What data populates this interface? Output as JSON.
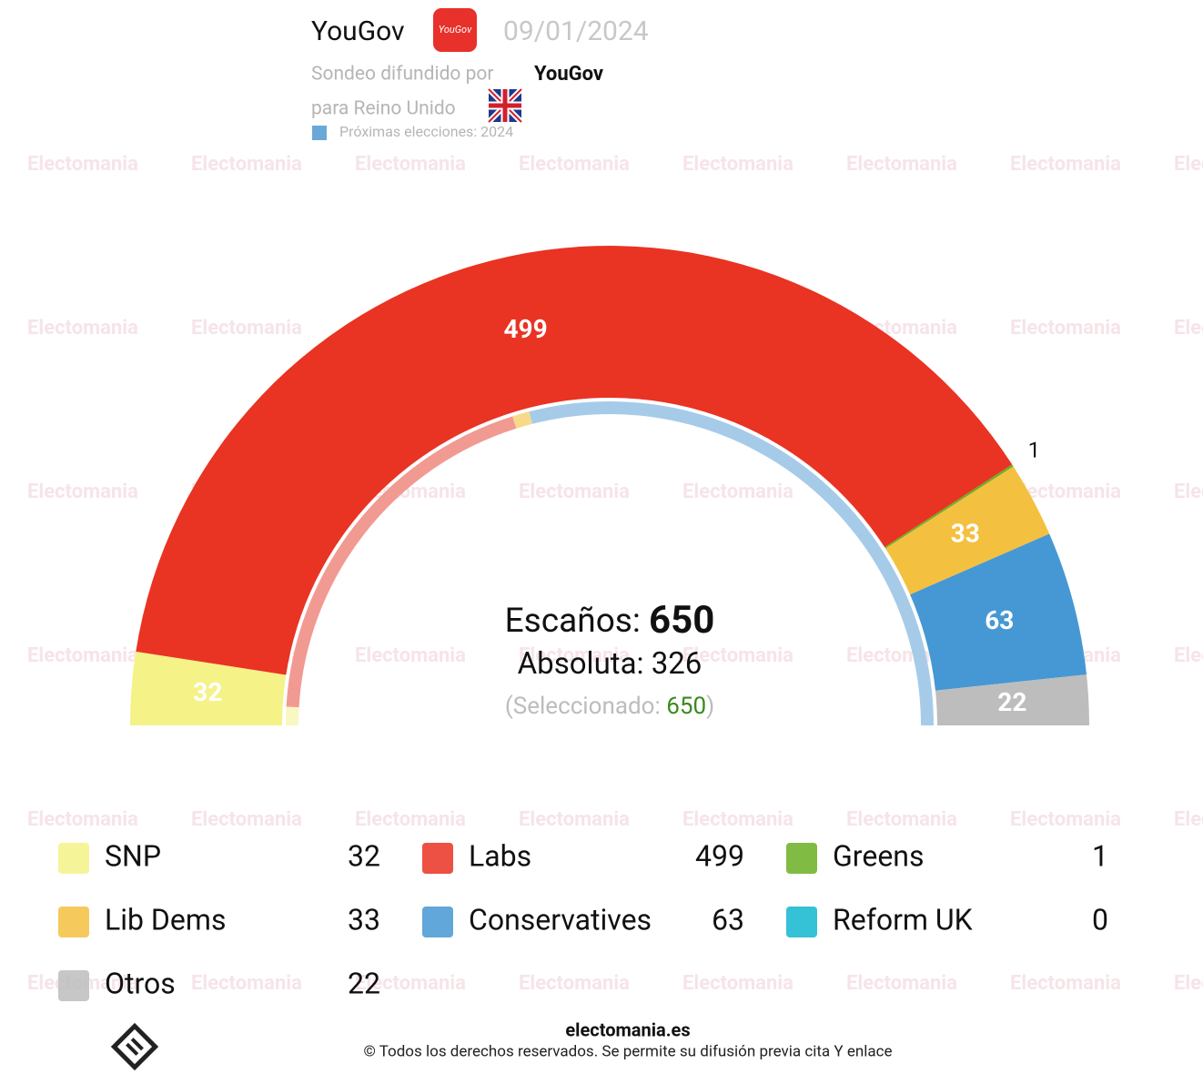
{
  "header": {
    "pollster": "YouGov",
    "logo_text": "YouGov",
    "date": "09/01/2024",
    "source_label": "Sondeo difundido por",
    "source": "YouGov",
    "region": "para Reino Unido",
    "next_election": "Próximas elecciones: 2024",
    "watermark": "Electomania"
  },
  "chart_data": {
    "type": "hemicycle",
    "categories": [
      "SNP",
      "Labs",
      "Greens",
      "Lib Dems",
      "Conservatives",
      "Reform UK",
      "Otros"
    ],
    "values": [
      32,
      499,
      1,
      33,
      63,
      0,
      22
    ],
    "colors": [
      "#f5f287",
      "#e93323",
      "#6ab023",
      "#f4c03f",
      "#4598d4",
      "#12b6cf",
      "#bdbdbd"
    ],
    "total_label": "Escaños:",
    "total": 650,
    "majority_label": "Absoluta:",
    "majority": 326,
    "selected_label": "(Seleccionado:",
    "selected": 650,
    "selected_close": ")",
    "inner_ring": {
      "values": [
        12,
        250,
        11,
        377
      ],
      "colors": [
        "#f9f7c2",
        "#f19a92",
        "#f8d98a",
        "#a6cbe9"
      ]
    }
  },
  "footer": {
    "site": "electomania.es",
    "copyright": "© Todos los derechos reservados. Se permite su difusión previa cita Y enlace"
  }
}
